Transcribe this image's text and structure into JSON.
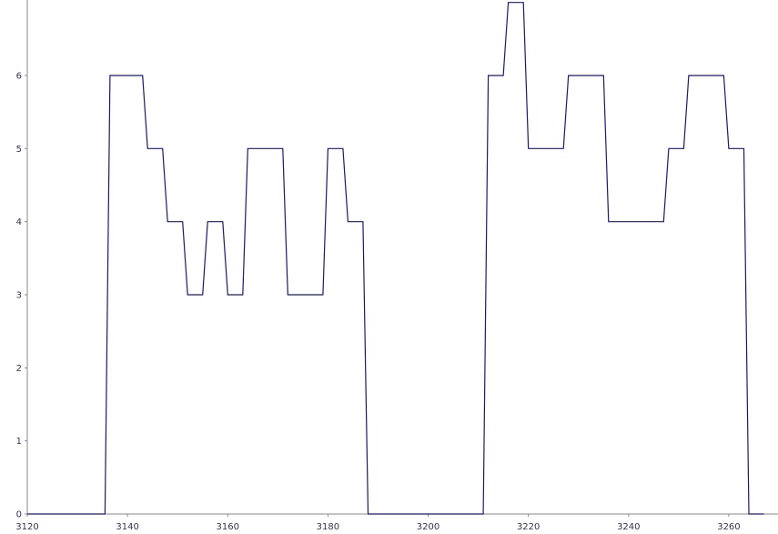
{
  "chart_data": {
    "type": "line",
    "title": "",
    "xlabel": "",
    "ylabel": "",
    "xlim": [
      3120,
      3270
    ],
    "ylim": [
      0,
      7
    ],
    "x_ticks": [
      3120,
      3140,
      3160,
      3180,
      3200,
      3220,
      3240,
      3260
    ],
    "y_ticks": [
      0,
      1,
      2,
      3,
      4,
      5,
      6
    ],
    "grid": false,
    "series": [
      {
        "color": "#1a1a6e",
        "points": [
          [
            3120,
            0
          ],
          [
            3135.5,
            0
          ],
          [
            3136.5,
            6
          ],
          [
            3143,
            6
          ],
          [
            3144,
            5
          ],
          [
            3147,
            5
          ],
          [
            3148,
            4
          ],
          [
            3151,
            4
          ],
          [
            3152,
            3
          ],
          [
            3155,
            3
          ],
          [
            3156,
            4
          ],
          [
            3159,
            4
          ],
          [
            3160,
            3
          ],
          [
            3163,
            3
          ],
          [
            3164,
            5
          ],
          [
            3171,
            5
          ],
          [
            3172,
            3
          ],
          [
            3179,
            3
          ],
          [
            3180,
            5
          ],
          [
            3183,
            5
          ],
          [
            3184,
            4
          ],
          [
            3187,
            4
          ],
          [
            3188,
            0
          ],
          [
            3211,
            0
          ],
          [
            3212,
            6
          ],
          [
            3215,
            6
          ],
          [
            3216,
            7
          ],
          [
            3219,
            7
          ],
          [
            3220,
            5
          ],
          [
            3227,
            5
          ],
          [
            3228,
            6
          ],
          [
            3235,
            6
          ],
          [
            3236,
            4
          ],
          [
            3247,
            4
          ],
          [
            3248,
            5
          ],
          [
            3251,
            5
          ],
          [
            3252,
            6
          ],
          [
            3259,
            6
          ],
          [
            3260,
            5
          ],
          [
            3263,
            5
          ],
          [
            3264,
            0
          ],
          [
            3267,
            0
          ]
        ]
      }
    ]
  }
}
